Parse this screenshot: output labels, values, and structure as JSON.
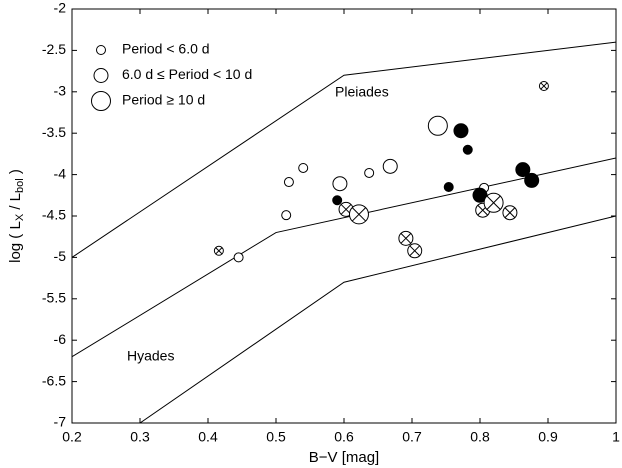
{
  "chart_data": {
    "type": "scatter",
    "xlabel": "B−V [mag]",
    "ylabel": [
      "log ( L",
      "X",
      " / L",
      "bol",
      " )"
    ],
    "xlim": [
      0.2,
      1
    ],
    "xticks": [
      0.2,
      0.3,
      0.4,
      0.5,
      0.6,
      0.7,
      0.8,
      0.9,
      1
    ],
    "ylim": [
      -7,
      -2
    ],
    "yticks": [
      -7,
      -6.5,
      -6,
      -5.5,
      -5,
      -4.5,
      -4,
      -3.5,
      -3,
      -2.5,
      -2
    ],
    "annotations": [
      "Pleiades",
      "Hyades"
    ],
    "lines": [
      {
        "x": [
          0.2,
          0.6,
          1.0
        ],
        "values": [
          -5,
          -2.8,
          -2.4
        ]
      },
      {
        "x": [
          0.2,
          0.5,
          1.0
        ],
        "values": [
          -6.2,
          -4.7,
          -3.8
        ]
      },
      {
        "x": [
          0.3,
          0.6,
          1.0
        ],
        "values": [
          -7,
          -5.3,
          -4.5
        ]
      }
    ],
    "series": [
      {
        "name": "Period < 6.0 d",
        "radius": 4.5,
        "x": [
          0.445,
          0.519,
          0.54,
          0.515,
          0.637,
          0.806,
          0.416,
          0.894,
          0.59,
          0.754,
          0.782
        ],
        "values": [
          -5.0,
          -4.09,
          -3.92,
          -4.49,
          -3.98,
          -4.16,
          -4.92,
          -2.93,
          -4.31,
          -4.15,
          -3.7
        ],
        "colors": [
          "#ffffff",
          "#ffffff",
          "#ffffff",
          "#ffffff",
          "#ffffff",
          "#ffffff",
          "#ffffff",
          "#ffffff",
          "#000000",
          "#000000",
          "#000000"
        ],
        "crossed": [
          false,
          false,
          false,
          false,
          false,
          false,
          true,
          true,
          false,
          false,
          false
        ]
      },
      {
        "name": "6.0 d ≤ Period < 10 d",
        "radius": 7,
        "x": [
          0.594,
          0.668,
          0.772,
          0.8,
          0.863,
          0.876,
          0.603,
          0.804,
          0.844,
          0.691,
          0.704
        ],
        "values": [
          -4.11,
          -3.9,
          -3.47,
          -4.25,
          -3.94,
          -4.07,
          -4.42,
          -4.43,
          -4.46,
          -4.77,
          -4.92
        ],
        "colors": [
          "#ffffff",
          "#ffffff",
          "#000000",
          "#000000",
          "#000000",
          "#000000",
          "#ffffff",
          "#ffffff",
          "#ffffff",
          "#ffffff",
          "#ffffff"
        ],
        "crossed": [
          false,
          false,
          false,
          false,
          false,
          false,
          true,
          true,
          true,
          true,
          true
        ]
      },
      {
        "name": "Period ≥ 10 d",
        "radius": 9.5,
        "x": [
          0.738,
          0.622,
          0.82
        ],
        "values": [
          -3.41,
          -4.48,
          -4.34
        ],
        "colors": [
          "#ffffff",
          "#ffffff",
          "#ffffff"
        ],
        "crossed": [
          false,
          true,
          true
        ]
      }
    ]
  }
}
